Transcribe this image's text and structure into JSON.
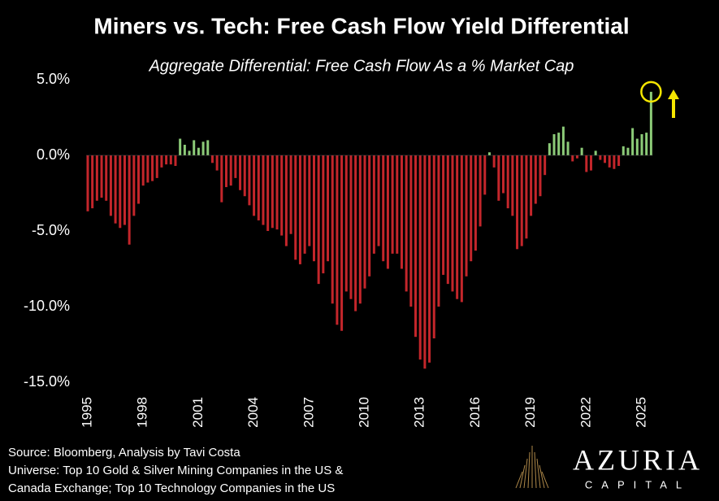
{
  "chart_data": {
    "type": "bar",
    "title": "Miners vs. Tech: Free Cash Flow Yield Differential",
    "subtitle": "Aggregate Differential: Free Cash Flow As a % Market Cap",
    "x": [
      1995,
      1995.25,
      1995.5,
      1995.75,
      1996,
      1996.25,
      1996.5,
      1996.75,
      1997,
      1997.25,
      1997.5,
      1997.75,
      1998,
      1998.25,
      1998.5,
      1998.75,
      1999,
      1999.25,
      1999.5,
      1999.75,
      2000,
      2000.25,
      2000.5,
      2000.75,
      2001,
      2001.25,
      2001.5,
      2001.75,
      2002,
      2002.25,
      2002.5,
      2002.75,
      2003,
      2003.25,
      2003.5,
      2003.75,
      2004,
      2004.25,
      2004.5,
      2004.75,
      2005,
      2005.25,
      2005.5,
      2005.75,
      2006,
      2006.25,
      2006.5,
      2006.75,
      2007,
      2007.25,
      2007.5,
      2007.75,
      2008,
      2008.25,
      2008.5,
      2008.75,
      2009,
      2009.25,
      2009.5,
      2009.75,
      2010,
      2010.25,
      2010.5,
      2010.75,
      2011,
      2011.25,
      2011.5,
      2011.75,
      2012,
      2012.25,
      2012.5,
      2012.75,
      2013,
      2013.25,
      2013.5,
      2013.75,
      2014,
      2014.25,
      2014.5,
      2014.75,
      2015,
      2015.25,
      2015.5,
      2015.75,
      2016,
      2016.25,
      2016.5,
      2016.75,
      2017,
      2017.25,
      2017.5,
      2017.75,
      2018,
      2018.25,
      2018.5,
      2018.75,
      2019,
      2019.25,
      2019.5,
      2019.75,
      2020,
      2020.25,
      2020.5,
      2020.75,
      2021,
      2021.25,
      2021.5,
      2021.75,
      2022,
      2022.25,
      2022.5,
      2022.75,
      2023,
      2023.25,
      2023.5,
      2023.75,
      2024,
      2024.25,
      2024.5,
      2024.75,
      2025,
      2025.25,
      2025.5
    ],
    "values": [
      -3.7,
      -3.5,
      -3.0,
      -2.8,
      -3.0,
      -4.0,
      -4.5,
      -4.8,
      -4.6,
      -5.9,
      -4.0,
      -3.2,
      -2.0,
      -1.8,
      -1.7,
      -1.5,
      -0.8,
      -0.6,
      -0.6,
      -0.7,
      1.1,
      0.7,
      0.3,
      1.0,
      0.5,
      0.9,
      1.0,
      -0.5,
      -1.0,
      -3.1,
      -2.1,
      -2.0,
      -1.5,
      -2.3,
      -2.7,
      -3.3,
      -4.0,
      -4.3,
      -4.6,
      -5.0,
      -4.8,
      -4.9,
      -5.3,
      -6.0,
      -5.2,
      -6.9,
      -7.2,
      -6.5,
      -6.0,
      -7.0,
      -8.5,
      -7.8,
      -7.0,
      -9.8,
      -11.2,
      -11.6,
      -9.0,
      -9.5,
      -10.3,
      -9.8,
      -8.8,
      -8.0,
      -6.5,
      -6.0,
      -7.0,
      -7.5,
      -6.5,
      -6.5,
      -7.5,
      -9.0,
      -10.0,
      -12.0,
      -13.5,
      -14.1,
      -13.7,
      -12.1,
      -10.0,
      -7.9,
      -8.5,
      -9.0,
      -9.5,
      -9.7,
      -8.0,
      -7.0,
      -6.3,
      -4.7,
      -2.6,
      0.2,
      -0.8,
      -3.0,
      -2.5,
      -3.5,
      -4.0,
      -6.2,
      -6.0,
      -5.5,
      -4.0,
      -3.2,
      -2.7,
      -1.3,
      0.8,
      1.4,
      1.5,
      1.9,
      0.9,
      -0.4,
      -0.2,
      0.5,
      -1.1,
      -1.0,
      0.3,
      -0.3,
      -0.5,
      -0.8,
      -0.9,
      -0.7,
      0.6,
      0.5,
      1.8,
      1.1,
      1.4,
      1.5,
      4.2
    ],
    "positive_color": "#8ccb78",
    "negative_color": "#c4262b",
    "ylim": [
      -15,
      5
    ],
    "yticks": [
      {
        "value": 5,
        "label": "5.0%"
      },
      {
        "value": 0,
        "label": "0.0%"
      },
      {
        "value": -5,
        "label": "-5.0%"
      },
      {
        "value": -10,
        "label": "-10.0%"
      },
      {
        "value": -15,
        "label": "-15.0%"
      }
    ],
    "xlim": [
      1995,
      2025
    ],
    "xticks": [
      1995,
      1998,
      2001,
      2004,
      2007,
      2010,
      2013,
      2016,
      2019,
      2022,
      2025
    ],
    "footnotes": [
      "Source: Bloomberg, Analysis by Tavi Costa",
      "Universe: Top 10 Gold & Silver Mining Companies in the US &",
      "Canada Exchange; Top 10 Technology Companies in the US"
    ],
    "logo": {
      "name": "AZURIA",
      "tagline": "CAPITAL"
    }
  }
}
